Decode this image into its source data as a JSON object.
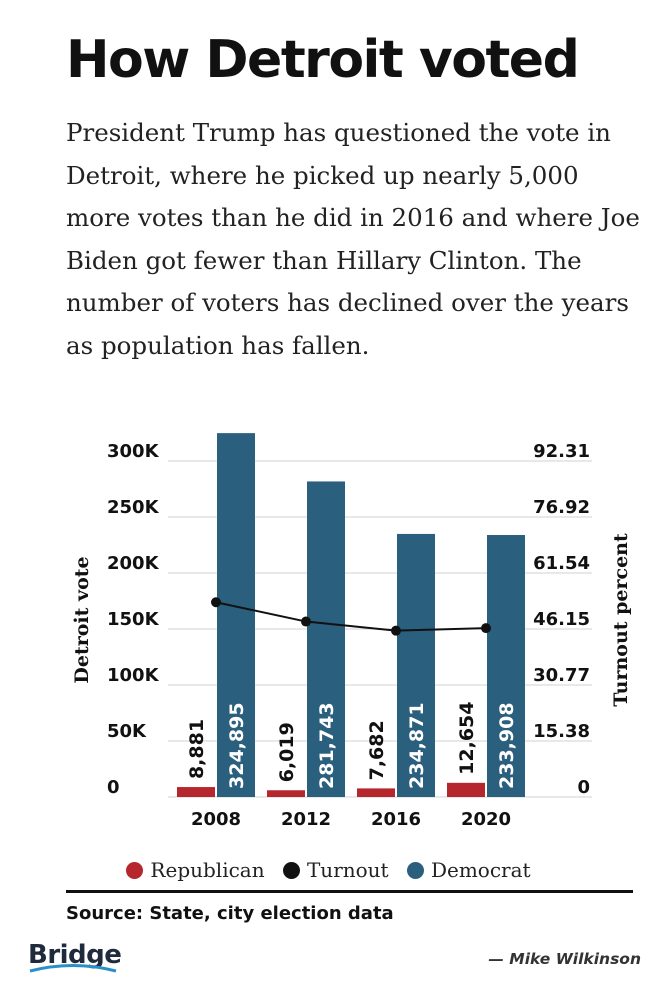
{
  "header": {
    "title": "How Detroit voted",
    "subtitle": "President Trump has questioned the vote in Detroit, where he picked up nearly 5,000 more votes than he did in 2016 and where Joe Biden got fewer than Hillary Clinton. The number of voters has declined over the years as population has fallen."
  },
  "chart_data": {
    "type": "bar",
    "categories": [
      "2008",
      "2012",
      "2016",
      "2020"
    ],
    "series": [
      {
        "name": "Republican",
        "values": [
          8881,
          6019,
          7682,
          12654
        ],
        "labels": [
          "8,881",
          "6,019",
          "7,682",
          "12,654"
        ],
        "color": "#b5272d"
      },
      {
        "name": "Democrat",
        "values": [
          324895,
          281743,
          234871,
          233908
        ],
        "labels": [
          "324,895",
          "281,743",
          "234,871",
          "233,908"
        ],
        "color": "#2b5f7e"
      }
    ],
    "line_series": {
      "name": "Turnout",
      "axis": "right",
      "values": [
        53.5,
        48.2,
        45.7,
        46.4
      ],
      "color": "#111111"
    },
    "ylabel": "Detroit vote",
    "ylim": [
      0,
      325000
    ],
    "y_ticks": [
      {
        "value": 0,
        "label": "0"
      },
      {
        "value": 50000,
        "label": "50K"
      },
      {
        "value": 100000,
        "label": "100K"
      },
      {
        "value": 150000,
        "label": "150K"
      },
      {
        "value": 200000,
        "label": "200K"
      },
      {
        "value": 250000,
        "label": "250K"
      },
      {
        "value": 300000,
        "label": "300K"
      }
    ],
    "y2label": "Turnout percent",
    "y2lim": [
      0,
      100
    ],
    "y2_ticks": [
      "0",
      "15.38",
      "30.77",
      "46.15",
      "61.54",
      "76.92",
      "92.31"
    ],
    "grid": true,
    "legend_position": "bottom"
  },
  "legend": [
    {
      "label": "Republican",
      "color": "#b5272d"
    },
    {
      "label": "Turnout",
      "color": "#111111"
    },
    {
      "label": "Democrat",
      "color": "#2b5f7e"
    }
  ],
  "footer": {
    "source": "Source: State, city election data",
    "logo": "Bridge",
    "credit": "— Mike Wilkinson"
  }
}
